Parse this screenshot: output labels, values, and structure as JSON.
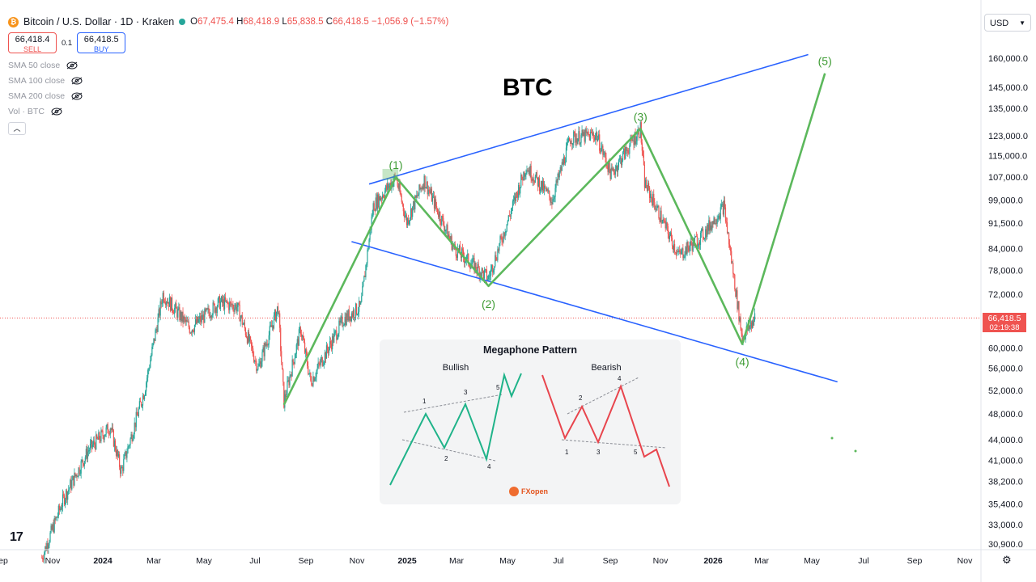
{
  "header": {
    "symbol": "Bitcoin / U.S. Dollar · 1D · Kraken",
    "open_label": "O",
    "open": "67,475.4",
    "high_label": "H",
    "high": "68,418.9",
    "low_label": "L",
    "low": "65,838.5",
    "close_label": "C",
    "close": "66,418.5",
    "change": "−1,056.9 (−1.57%)"
  },
  "trade": {
    "sell_price": "66,418.4",
    "sell_label": "SELL",
    "spread": "0.1",
    "buy_price": "66,418.5",
    "buy_label": "BUY"
  },
  "indicators": [
    "SMA 50 close",
    "SMA 100 close",
    "SMA 200 close",
    "Vol · BTC"
  ],
  "currency": "USD",
  "last_price": {
    "price": "66,418.5",
    "countdown": "02:19:38"
  },
  "chart_title": "BTC",
  "colors": {
    "up": "#26a69a",
    "down": "#ef5350",
    "wave": "#5cb85c",
    "trendline": "#2962ff",
    "inset_bull": "#1fb389",
    "inset_bear": "#e8454d"
  },
  "chart_data": {
    "type": "candlestick",
    "y_axis": {
      "scale": "log",
      "ticks": [
        "160,000.0",
        "145,000.0",
        "135,000.0",
        "123,000.0",
        "115,000.0",
        "107,000.0",
        "99,000.0",
        "91,500.0",
        "84,000.0",
        "78,000.0",
        "72,000.0",
        "60,000.0",
        "56,000.0",
        "52,000.0",
        "48,000.0",
        "44,000.0",
        "41,000.0",
        "38,200.0",
        "35,400.0",
        "33,000.0",
        "30,900.0"
      ]
    },
    "x_axis": {
      "ticks": [
        "ep",
        "Nov",
        "2024",
        "Mar",
        "May",
        "Jul",
        "Sep",
        "Nov",
        "2025",
        "Mar",
        "May",
        "Jul",
        "Sep",
        "Nov",
        "2026",
        "Mar",
        "May",
        "Jul",
        "Sep",
        "Nov"
      ]
    },
    "price_path": [
      [
        "2023-10-20",
        29500
      ],
      [
        "2023-11-15",
        36000
      ],
      [
        "2023-12-15",
        42500
      ],
      [
        "2024-01-10",
        46000
      ],
      [
        "2024-01-23",
        39500
      ],
      [
        "2024-02-20",
        52000
      ],
      [
        "2024-03-13",
        72000
      ],
      [
        "2024-04-15",
        64000
      ],
      [
        "2024-05-20",
        70000
      ],
      [
        "2024-06-10",
        69000
      ],
      [
        "2024-07-05",
        56000
      ],
      [
        "2024-07-29",
        69000
      ],
      [
        "2024-08-05",
        50000
      ],
      [
        "2024-08-25",
        64000
      ],
      [
        "2024-09-06",
        53500
      ],
      [
        "2024-10-15",
        66000
      ],
      [
        "2024-11-05",
        69000
      ],
      [
        "2024-11-20",
        97000
      ],
      [
        "2024-12-17",
        107000
      ],
      [
        "2024-12-30",
        92000
      ],
      [
        "2025-01-20",
        106000
      ],
      [
        "2025-02-25",
        84000
      ],
      [
        "2025-04-07",
        76000
      ],
      [
        "2025-05-22",
        111000
      ],
      [
        "2025-06-22",
        99000
      ],
      [
        "2025-07-14",
        122000
      ],
      [
        "2025-08-14",
        123500
      ],
      [
        "2025-09-01",
        108000
      ],
      [
        "2025-10-06",
        126000
      ],
      [
        "2025-10-11",
        105000
      ],
      [
        "2025-11-21",
        82000
      ],
      [
        "2025-12-20",
        88000
      ],
      [
        "2026-01-14",
        97000
      ],
      [
        "2026-02-05",
        62000
      ],
      [
        "2026-02-20",
        66418
      ]
    ],
    "elliott_waves": [
      {
        "label": "(1)",
        "date": "2024-12-17",
        "price": 107000
      },
      {
        "label": "(2)",
        "date": "2025-04-07",
        "price": 74000
      },
      {
        "label": "(3)",
        "date": "2025-10-06",
        "price": 126000
      },
      {
        "label": "(4)",
        "date": "2026-02-05",
        "price": 60800
      },
      {
        "label": "(5)",
        "date": "2026-05-15",
        "price": 152000
      }
    ],
    "wave_start": {
      "date": "2024-08-05",
      "price": 49500
    },
    "trendlines": [
      {
        "from": {
          "date": "2024-11-15",
          "price": 104500
        },
        "to": {
          "date": "2026-04-25",
          "price": 162000
        }
      },
      {
        "from": {
          "date": "2024-10-25",
          "price": 86000
        },
        "to": {
          "date": "2026-05-30",
          "price": 53500
        }
      }
    ],
    "current_price": 66418.5
  },
  "inset": {
    "title": "Megaphone Pattern",
    "bullish_label": "Bullish",
    "bearish_label": "Bearish",
    "bull_numbers": [
      "1",
      "2",
      "3",
      "4",
      "5"
    ],
    "bear_numbers": [
      "1",
      "2",
      "3",
      "4",
      "5"
    ],
    "brand": "FXopen"
  }
}
